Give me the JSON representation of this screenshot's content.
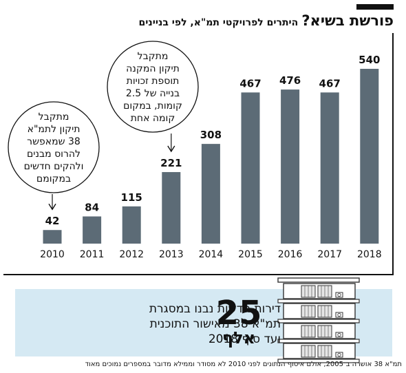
{
  "header": {
    "title": "פורשת בשיא?",
    "subtitle": "היתרים לפרויקטי תמ\"א, לפי בניינים"
  },
  "chart_data": {
    "type": "bar",
    "categories": [
      "2010",
      "2011",
      "2012",
      "2013",
      "2014",
      "2015",
      "2016",
      "2017",
      "2018"
    ],
    "values": [
      42,
      84,
      115,
      221,
      308,
      467,
      476,
      467,
      540
    ],
    "ylim": [
      0,
      540
    ],
    "bar_color": "#5c6b76",
    "grid": false,
    "annotations": [
      {
        "category": "2010",
        "lines": [
          "מתקבל",
          "תיקון לתמ\"א",
          "38 שמאפשר",
          "להרוס מבנים",
          "ולהקים חדשים",
          "במקומם"
        ]
      },
      {
        "category": "2013",
        "lines": [
          "מתקבל",
          "תיקון המקנה",
          "תוספת זכויות",
          "בנייה של 2.5",
          "קומות, במקום",
          "קומה אחת"
        ]
      }
    ]
  },
  "callout": {
    "big_number": "25",
    "unit": "אלף",
    "lines": [
      "דירות חדשות נבנו במסגרת",
      "תמ\"א 38 מאישור התוכנית",
      "ועד סוף 2018"
    ],
    "panel_color": "#d5e9f3"
  },
  "footnote": "תמ\"א 38 אושרה ב־2005, אולם איסוף הנתונים לפני 2010 לא מסודר וממילא מדובר במספרים נמוכים מאוד"
}
